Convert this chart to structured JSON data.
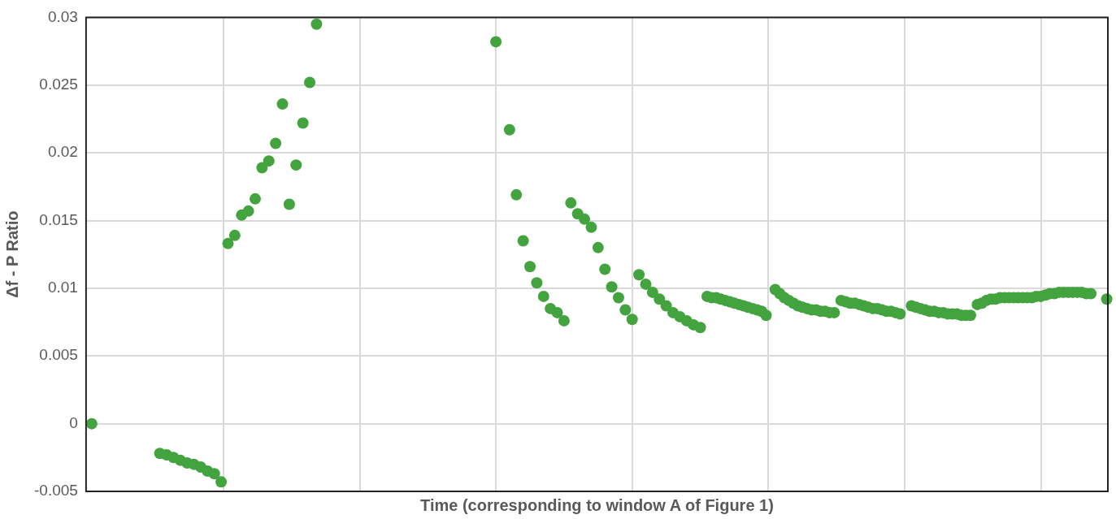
{
  "chart_data": {
    "type": "scatter",
    "xlabel": "Time (corresponding to window A of Figure 1)",
    "ylabel": "Δf - P Ratio",
    "ylim": [
      -0.005,
      0.03
    ],
    "yticks": [
      -0.005,
      0,
      0.005,
      0.01,
      0.015,
      0.02,
      0.025,
      0.03
    ],
    "tick_labels": "y",
    "grid": true,
    "marker": "circle",
    "color": "#43a33f",
    "categories": [
      null,
      null,
      null,
      null,
      null,
      null,
      null,
      null,
      null,
      null,
      null,
      null,
      null,
      null,
      null,
      null,
      null,
      null,
      null,
      null,
      null,
      null,
      null,
      null,
      null,
      null,
      null,
      null,
      null,
      null,
      null,
      null,
      null,
      null,
      null,
      null,
      null,
      null,
      null,
      null,
      null,
      null,
      null,
      null,
      null,
      null,
      null,
      null,
      null,
      null,
      null,
      null,
      null,
      null,
      null,
      null,
      null,
      null,
      null,
      null,
      null,
      null,
      null,
      null,
      null,
      null,
      null,
      null,
      null,
      null,
      null,
      null,
      null,
      null,
      null,
      null,
      null,
      null,
      null,
      null,
      null,
      null,
      null,
      null,
      null,
      null,
      null,
      null,
      null,
      null,
      null,
      null,
      null,
      null,
      null,
      null,
      null,
      null,
      null,
      null,
      null,
      null,
      null,
      null,
      null,
      null,
      null,
      null,
      null,
      null,
      null,
      null,
      null,
      null,
      null,
      null,
      null,
      null,
      null,
      null,
      null,
      null,
      null,
      null,
      null,
      null,
      null,
      null,
      null,
      null,
      null,
      null,
      null,
      null,
      null,
      null,
      null,
      null,
      null,
      null,
      null,
      null,
      null,
      null,
      null,
      null,
      null,
      null,
      null,
      null,
      null,
      null,
      null,
      null,
      null,
      null,
      null,
      null,
      null,
      null,
      null,
      null,
      null,
      null,
      null,
      null,
      null,
      null,
      null,
      null,
      null,
      null,
      null,
      null,
      null,
      null,
      null,
      null,
      null,
      null,
      null,
      null,
      null,
      null,
      null,
      null,
      null,
      null,
      null,
      null,
      null,
      null,
      null,
      null,
      null,
      null,
      null,
      null,
      null,
      null,
      null,
      null,
      null,
      null,
      null,
      null,
      null,
      null,
      null,
      null,
      null,
      null,
      null,
      null,
      null,
      null,
      null,
      null,
      null,
      null,
      null,
      null,
      null,
      null,
      null,
      null,
      null,
      null,
      null,
      null,
      null,
      null,
      null,
      null,
      null,
      null,
      null,
      null,
      null,
      null,
      null,
      null,
      null,
      null,
      null,
      null,
      null,
      null,
      null,
      null,
      null,
      null,
      null,
      null,
      null,
      null,
      null,
      null,
      null,
      null,
      null,
      null,
      null,
      null,
      null,
      null,
      null,
      null,
      null,
      null,
      null,
      null,
      null,
      null,
      null,
      null,
      null,
      null,
      null,
      null,
      null,
      null,
      null,
      null,
      null,
      null,
      null,
      null,
      null,
      null,
      null,
      null,
      null,
      null,
      null,
      null,
      null,
      null,
      null,
      null,
      null,
      null,
      null,
      null,
      null,
      null,
      null,
      null,
      null,
      null,
      null,
      null,
      null,
      null,
      null,
      null,
      null,
      null,
      null,
      null,
      null,
      null,
      null,
      null,
      null,
      null,
      null,
      null,
      null,
      null,
      null,
      null,
      null,
      null,
      null,
      null,
      null,
      null,
      null,
      null,
      null,
      null,
      null,
      null,
      null,
      null,
      null,
      null,
      null,
      null,
      null,
      null,
      null,
      null,
      null,
      null,
      null,
      null,
      null,
      null,
      null,
      null,
      null,
      null,
      null,
      null,
      null,
      null,
      null,
      null,
      null,
      null,
      null,
      null,
      null,
      null,
      null,
      null,
      null,
      null,
      null,
      null,
      null,
      null,
      null,
      null,
      null,
      null,
      null,
      null,
      null,
      null,
      null,
      null,
      null,
      null,
      null,
      null,
      null,
      null,
      null,
      null,
      null,
      null,
      null,
      null,
      null,
      null,
      null,
      null,
      null,
      null,
      null,
      null,
      null,
      null,
      null,
      null,
      null,
      null,
      null,
      null,
      null,
      null,
      null,
      null,
      null,
      null,
      null,
      null,
      null,
      null,
      null,
      null,
      null,
      null,
      null,
      null,
      null,
      null,
      null,
      null,
      null,
      null,
      null,
      null,
      null,
      null,
      null,
      null
    ],
    "values": [
      null,
      null,
      0,
      null,
      null,
      null,
      null,
      null,
      null,
      null,
      null,
      null,
      null,
      null,
      null,
      null,
      null,
      null,
      null,
      null,
      null,
      null,
      null,
      null,
      null,
      null,
      null,
      null,
      null,
      null,
      null,
      null,
      -0.0022,
      null,
      null,
      -0.0023,
      null,
      null,
      -0.0025,
      null,
      null,
      -0.0027,
      null,
      null,
      -0.0029,
      null,
      null,
      -0.003,
      null,
      null,
      -0.0032,
      null,
      null,
      -0.0035,
      null,
      null,
      -0.0037,
      null,
      null,
      -0.0043,
      null,
      null,
      0.0133,
      null,
      null,
      0.0139,
      null,
      null,
      0.0154,
      null,
      null,
      0.0157,
      null,
      null,
      0.0166,
      null,
      null,
      0.0189,
      null,
      null,
      0.0194,
      null,
      null,
      0.0207,
      null,
      null,
      0.0236,
      null,
      null,
      0.0162,
      null,
      null,
      0.0191,
      null,
      null,
      0.0222,
      null,
      null,
      0.0252,
      null,
      null,
      0.0295,
      null,
      null,
      null,
      null,
      null,
      null,
      null,
      null,
      null,
      null,
      null,
      null,
      null,
      null,
      null,
      null,
      null,
      null,
      null,
      null,
      null,
      null,
      null,
      null,
      null,
      null,
      null,
      null,
      null,
      null,
      null,
      null,
      null,
      null,
      null,
      null,
      null,
      null,
      null,
      null,
      null,
      null,
      null,
      null,
      null,
      null,
      null,
      null,
      null,
      null,
      null,
      null,
      null,
      null,
      null,
      null,
      null,
      null,
      null,
      null,
      null,
      null,
      null,
      null,
      null,
      null,
      null,
      null,
      null,
      null,
      null,
      null,
      null,
      null,
      null,
      null,
      null,
      null,
      0.0282,
      null,
      null,
      null,
      null,
      null,
      0.0217,
      null,
      null,
      0.0169,
      null,
      null,
      0.0135,
      null,
      null,
      0.0116,
      null,
      null,
      0.0104,
      null,
      null,
      0.0094,
      null,
      null,
      0.0085,
      null,
      null,
      0.0082,
      null,
      null,
      0.0076,
      null,
      null,
      0.0163,
      null,
      null,
      0.0155,
      null,
      null,
      0.0151,
      null,
      null,
      0.0145,
      null,
      null,
      0.013,
      null,
      null,
      0.0114,
      null,
      null,
      0.0101,
      null,
      null,
      0.0093,
      null,
      null,
      0.0084,
      null,
      null,
      0.0077,
      null,
      null,
      0.011,
      null,
      null,
      0.0103,
      null,
      null,
      0.0097,
      null,
      null,
      0.0092,
      null,
      null,
      0.0087,
      null,
      null,
      0.0082,
      null,
      null,
      0.0079,
      null,
      null,
      0.0076,
      null,
      null,
      0.0073,
      null,
      null,
      0.0071,
      null,
      null,
      0.0094,
      null,
      0.0093,
      null,
      0.0093,
      null,
      0.0092,
      null,
      0.0091,
      null,
      0.009,
      null,
      0.0089,
      null,
      0.0088,
      null,
      0.0087,
      null,
      0.0086,
      null,
      0.0085,
      null,
      0.0084,
      null,
      0.0083,
      null,
      0.008,
      null,
      null,
      null,
      0.0099,
      null,
      0.0096,
      null,
      0.0093,
      null,
      0.0091,
      null,
      0.0089,
      null,
      0.0087,
      null,
      0.0086,
      null,
      0.0085,
      null,
      0.0084,
      null,
      0.0084,
      null,
      0.0083,
      null,
      0.0083,
      null,
      0.0082,
      null,
      0.0082,
      null,
      null,
      0.0091,
      null,
      0.009,
      null,
      0.0089,
      null,
      0.0089,
      null,
      0.0088,
      null,
      0.0087,
      null,
      0.0086,
      null,
      0.0085,
      null,
      0.0085,
      null,
      0.0084,
      null,
      0.0083,
      null,
      0.0083,
      null,
      0.0082,
      null,
      0.0081,
      null,
      null,
      null,
      null,
      0.0087,
      null,
      0.0086,
      null,
      0.0085,
      null,
      0.0084,
      null,
      0.0083,
      null,
      0.0083,
      null,
      0.0082,
      null,
      0.0082,
      null,
      0.0081,
      null,
      0.0081,
      null,
      0.0081,
      null,
      0.008,
      null,
      0.008,
      null,
      0.008,
      null,
      null,
      0.0088,
      null,
      0.0089,
      null,
      0.0091,
      null,
      0.0092,
      null,
      0.0092,
      null,
      0.0093,
      null,
      0.0093,
      null,
      0.0093,
      null,
      0.0093,
      null,
      0.0093,
      null,
      0.0093,
      null,
      0.0093,
      null,
      0.0093,
      null,
      0.0094,
      null,
      0.0094,
      null,
      0.0095,
      null,
      0.0096,
      null,
      0.0096,
      null,
      0.0097,
      null,
      0.0097,
      null,
      0.0097,
      null,
      0.0097,
      null,
      0.0097,
      null,
      0.0097,
      null,
      0.0096,
      null,
      0.0096,
      null,
      null,
      null,
      null,
      null,
      null,
      0.0092
    ]
  }
}
